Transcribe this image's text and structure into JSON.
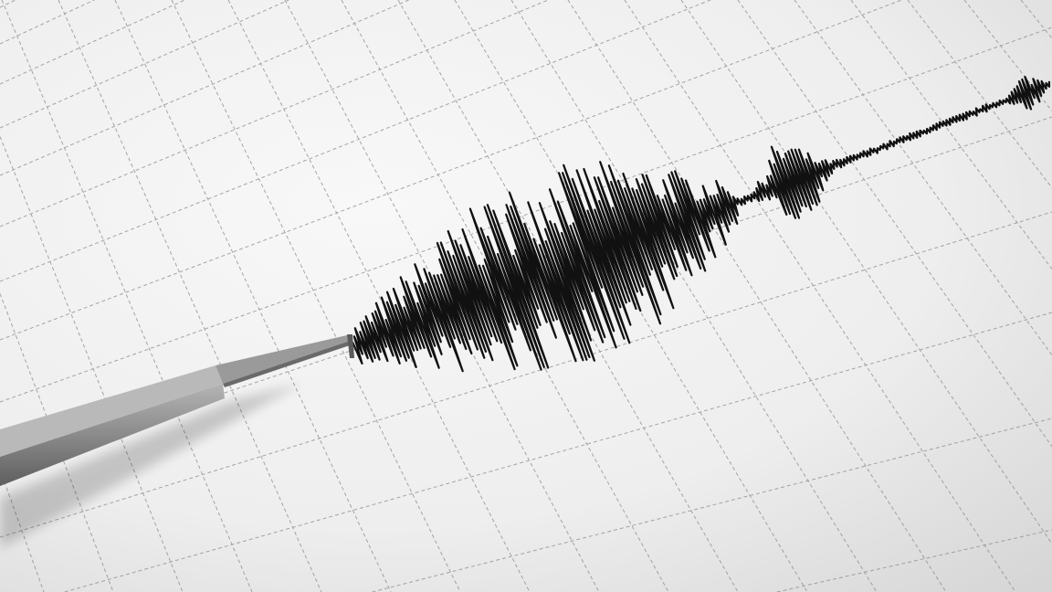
{
  "scene": {
    "subject": "seismograph",
    "colors": {
      "paper_light": "#f7f7f7",
      "paper_dark": "#dcdcdc",
      "grid": "#8a8a8a",
      "trace": "#111111",
      "stylus": "#8c8c8c"
    },
    "icons": [
      "seismograph-stylus-icon"
    ]
  }
}
